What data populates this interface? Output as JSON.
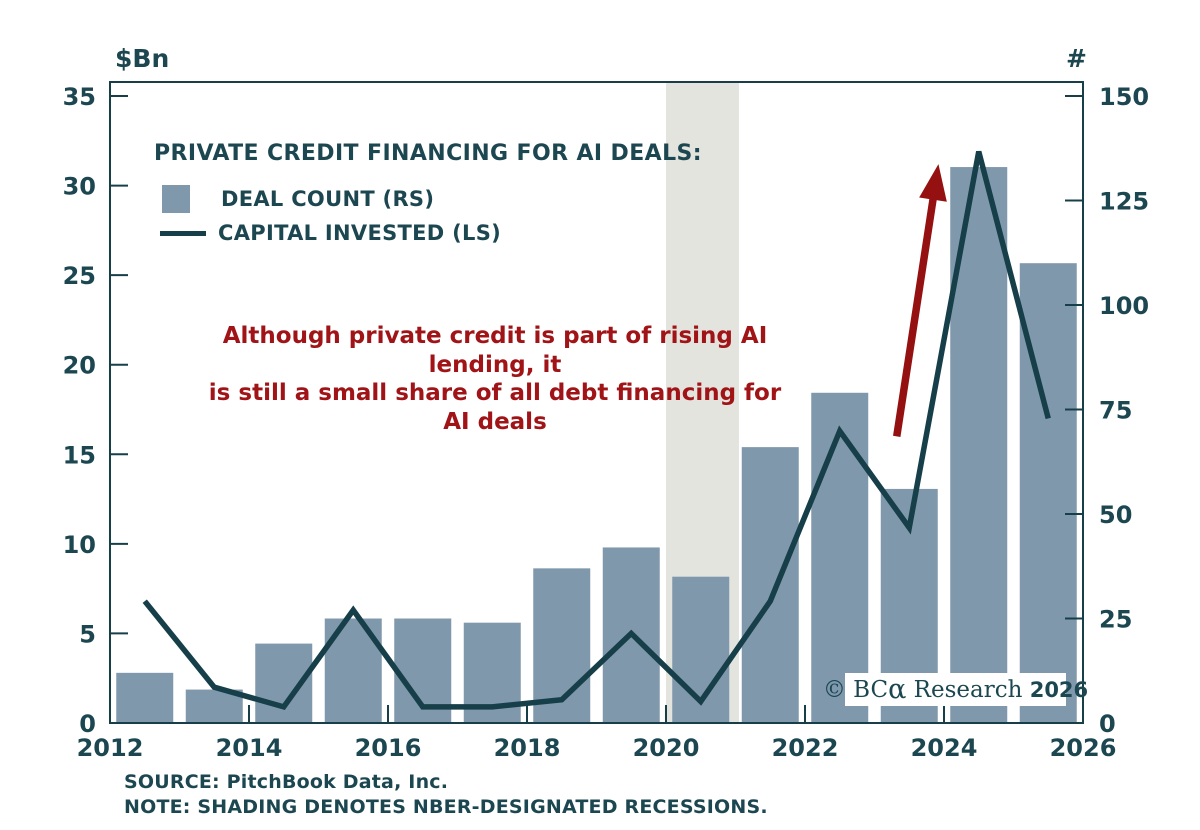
{
  "title": "PRIVATE CREDIT FINANCING FOR AI DEALS:",
  "legend": [
    {
      "label": "DEAL COUNT (RS)",
      "type": "bar"
    },
    {
      "label": "CAPITAL INVESTED (LS)",
      "type": "line"
    }
  ],
  "annotation": {
    "line1": "Although private credit is part of rising AI lending, it",
    "line2": "is still a small share of all debt financing for AI deals"
  },
  "watermark": {
    "prefix": "© BC",
    "alpha": "α",
    "middle": " Research ",
    "year": "2026"
  },
  "footer": {
    "source": "SOURCE: PitchBook Data, Inc.",
    "note": "NOTE: SHADING DENOTES NBER-DESIGNATED RECESSIONS."
  },
  "colors": {
    "teal_text": "#1c4751",
    "line": "#173f4a",
    "bar": "#8098ac",
    "red_text": "#a01316",
    "arrow": "#951010",
    "recession_band": "#e4e4df",
    "background": "#ffffff"
  },
  "chart_data": {
    "type": "bar+line combo",
    "x_years": [
      2012,
      2013,
      2014,
      2015,
      2016,
      2017,
      2018,
      2019,
      2020,
      2021,
      2022,
      2023,
      2024,
      2025
    ],
    "series": [
      {
        "name": "DEAL COUNT (RS)",
        "type": "bar",
        "axis": "right",
        "values": [
          12,
          8,
          19,
          25,
          25,
          24,
          37,
          42,
          35,
          66,
          79,
          56,
          133,
          110
        ]
      },
      {
        "name": "CAPITAL INVESTED (LS)",
        "type": "line",
        "axis": "left",
        "values": [
          6.8,
          2.0,
          0.9,
          6.3,
          0.9,
          0.9,
          1.3,
          5.0,
          1.2,
          6.8,
          16.3,
          10.9,
          31.9,
          17.0
        ]
      }
    ],
    "left_axis": {
      "label": "$Bn",
      "min": 0,
      "max": 35,
      "ticks": [
        0,
        5,
        10,
        15,
        20,
        25,
        30,
        35
      ]
    },
    "right_axis": {
      "label": "#",
      "min": 0,
      "max": 150,
      "ticks": [
        0,
        25,
        50,
        75,
        100,
        125,
        150
      ]
    },
    "x_axis": {
      "min": 2012,
      "max": 2026,
      "ticks": [
        2012,
        2014,
        2016,
        2018,
        2020,
        2022,
        2024,
        2026
      ]
    },
    "recession_band": {
      "start_year": 2020.0,
      "end_year": 2021.05
    },
    "arrow": {
      "tail_year": 2023.32,
      "tail_value_ls": 16.0,
      "tip_year": 2023.92,
      "tip_value_ls": 31.2
    },
    "grid": "off",
    "legend_position": "top-left inside plot"
  }
}
